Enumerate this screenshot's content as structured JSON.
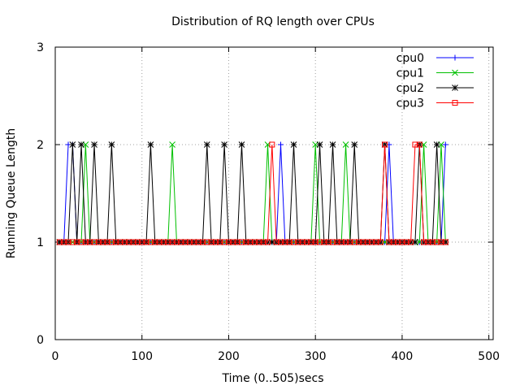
{
  "chart_data": {
    "type": "line",
    "title": "Distribution of RQ length over CPUs",
    "xlabel": "Time (0..505)secs",
    "ylabel": "Running Queue Length",
    "xlim": [
      0,
      505
    ],
    "ylim": [
      0,
      3
    ],
    "x_ticks": [
      "0",
      "100",
      "200",
      "300",
      "400",
      "500"
    ],
    "y_ticks": [
      "0",
      "1",
      "2",
      "3"
    ],
    "grid": true,
    "legend_position": "top-right",
    "sample_step": 5,
    "x_range": [
      5,
      450
    ],
    "baseline": 1,
    "series": [
      {
        "name": "cpu0",
        "color": "#0000ff",
        "marker": "plus",
        "peaks": [
          {
            "x": 15,
            "y": 2
          },
          {
            "x": 20,
            "y": 2
          },
          {
            "x": 260,
            "y": 2
          },
          {
            "x": 385,
            "y": 2
          },
          {
            "x": 450,
            "y": 2
          }
        ]
      },
      {
        "name": "cpu1",
        "color": "#00c000",
        "marker": "cross",
        "peaks": [
          {
            "x": 35,
            "y": 2
          },
          {
            "x": 135,
            "y": 2
          },
          {
            "x": 245,
            "y": 2
          },
          {
            "x": 300,
            "y": 2
          },
          {
            "x": 335,
            "y": 2
          },
          {
            "x": 425,
            "y": 2
          },
          {
            "x": 445,
            "y": 2
          }
        ]
      },
      {
        "name": "cpu2",
        "color": "#000000",
        "marker": "star",
        "peaks": [
          {
            "x": 20,
            "y": 2
          },
          {
            "x": 30,
            "y": 2
          },
          {
            "x": 45,
            "y": 2
          },
          {
            "x": 65,
            "y": 2
          },
          {
            "x": 110,
            "y": 2
          },
          {
            "x": 175,
            "y": 2
          },
          {
            "x": 195,
            "y": 2
          },
          {
            "x": 215,
            "y": 2
          },
          {
            "x": 275,
            "y": 2
          },
          {
            "x": 305,
            "y": 2
          },
          {
            "x": 320,
            "y": 2
          },
          {
            "x": 345,
            "y": 2
          },
          {
            "x": 380,
            "y": 2
          },
          {
            "x": 420,
            "y": 2
          },
          {
            "x": 440,
            "y": 2
          }
        ]
      },
      {
        "name": "cpu3",
        "color": "#ff0000",
        "marker": "square",
        "peaks": [
          {
            "x": 250,
            "y": 2
          },
          {
            "x": 380,
            "y": 2
          },
          {
            "x": 415,
            "y": 2
          },
          {
            "x": 420,
            "y": 2
          }
        ]
      }
    ]
  }
}
